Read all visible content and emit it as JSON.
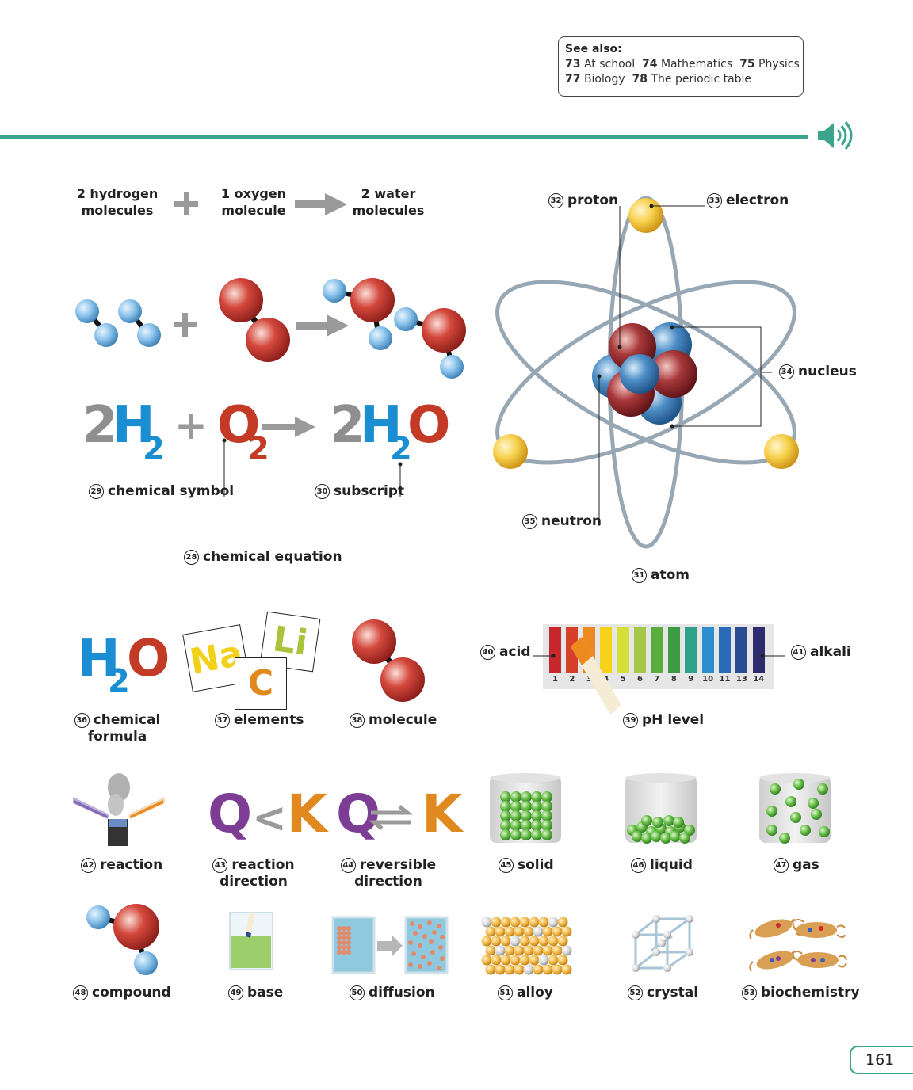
{
  "see_also": {
    "heading": "See also:",
    "items": [
      {
        "num": "73",
        "label": "At school"
      },
      {
        "num": "74",
        "label": "Mathematics"
      },
      {
        "num": "75",
        "label": "Physics"
      },
      {
        "num": "77",
        "label": "Biology"
      },
      {
        "num": "78",
        "label": "The periodic table"
      }
    ]
  },
  "equation": {
    "hydrogen": "2 hydrogen molecules",
    "oxygen": "1 oxygen molecule",
    "water": "2 water molecules",
    "formula": {
      "h_coef": "2",
      "h": "H",
      "h_sub": "2",
      "plus": "+",
      "o": "O",
      "o_sub": "2",
      "w_coef": "2",
      "w_h": "H",
      "w_sub": "2",
      "w_o": "O"
    }
  },
  "labels": {
    "n28": "28",
    "t28": "chemical equation",
    "n29": "29",
    "t29": "chemical symbol",
    "n30": "30",
    "t30": "subscript",
    "n31": "31",
    "t31": "atom",
    "n32": "32",
    "t32": "proton",
    "n33": "33",
    "t33": "electron",
    "n34": "34",
    "t34": "nucleus",
    "n35": "35",
    "t35": "neutron",
    "n36": "36",
    "t36": "chemical formula",
    "n37": "37",
    "t37": "elements",
    "n38": "38",
    "t38": "molecule",
    "n39": "39",
    "t39": "pH level",
    "n40": "40",
    "t40": "acid",
    "n41": "41",
    "t41": "alkali",
    "n42": "42",
    "t42": "reaction",
    "n43": "43",
    "t43": "reaction direction",
    "n44": "44",
    "t44": "reversible direction",
    "n45": "45",
    "t45": "solid",
    "n46": "46",
    "t46": "liquid",
    "n47": "47",
    "t47": "gas",
    "n48": "48",
    "t48": "compound",
    "n49": "49",
    "t49": "base",
    "n50": "50",
    "t50": "diffusion",
    "n51": "51",
    "t51": "alloy",
    "n52": "52",
    "t52": "crystal",
    "n53": "53",
    "t53": "biochemistry"
  },
  "formula_h2o": {
    "h": "H",
    "sub": "2",
    "o": "O"
  },
  "element_cards": {
    "na": "Na",
    "li": "Li",
    "c": "C"
  },
  "ph_scale": {
    "numbers": [
      "1",
      "2",
      "3",
      "4",
      "5",
      "6",
      "7",
      "8",
      "9",
      "10",
      "11",
      "13",
      "14"
    ],
    "colors": [
      "#c8282d",
      "#d63f2a",
      "#ec8a1f",
      "#f6d21a",
      "#d6df37",
      "#a6c64a",
      "#5bae3e",
      "#3d9b45",
      "#2fa089",
      "#2b8fcf",
      "#2a6bb7",
      "#2a4d91",
      "#2d2a6d"
    ]
  },
  "qk": {
    "q": "Q",
    "lt": "<",
    "k": "K"
  },
  "page_number": "161",
  "colors": {
    "accent": "#3aa58c",
    "hydrogen": "#8cc4ec",
    "oxygen": "#c8302d",
    "grey_text": "#8f8f8f",
    "blue_text": "#1b8ed3",
    "red_text": "#c33a26",
    "purple": "#7d3d95",
    "orange": "#e0891e"
  },
  "icons": {
    "speaker": "speaker-icon"
  }
}
